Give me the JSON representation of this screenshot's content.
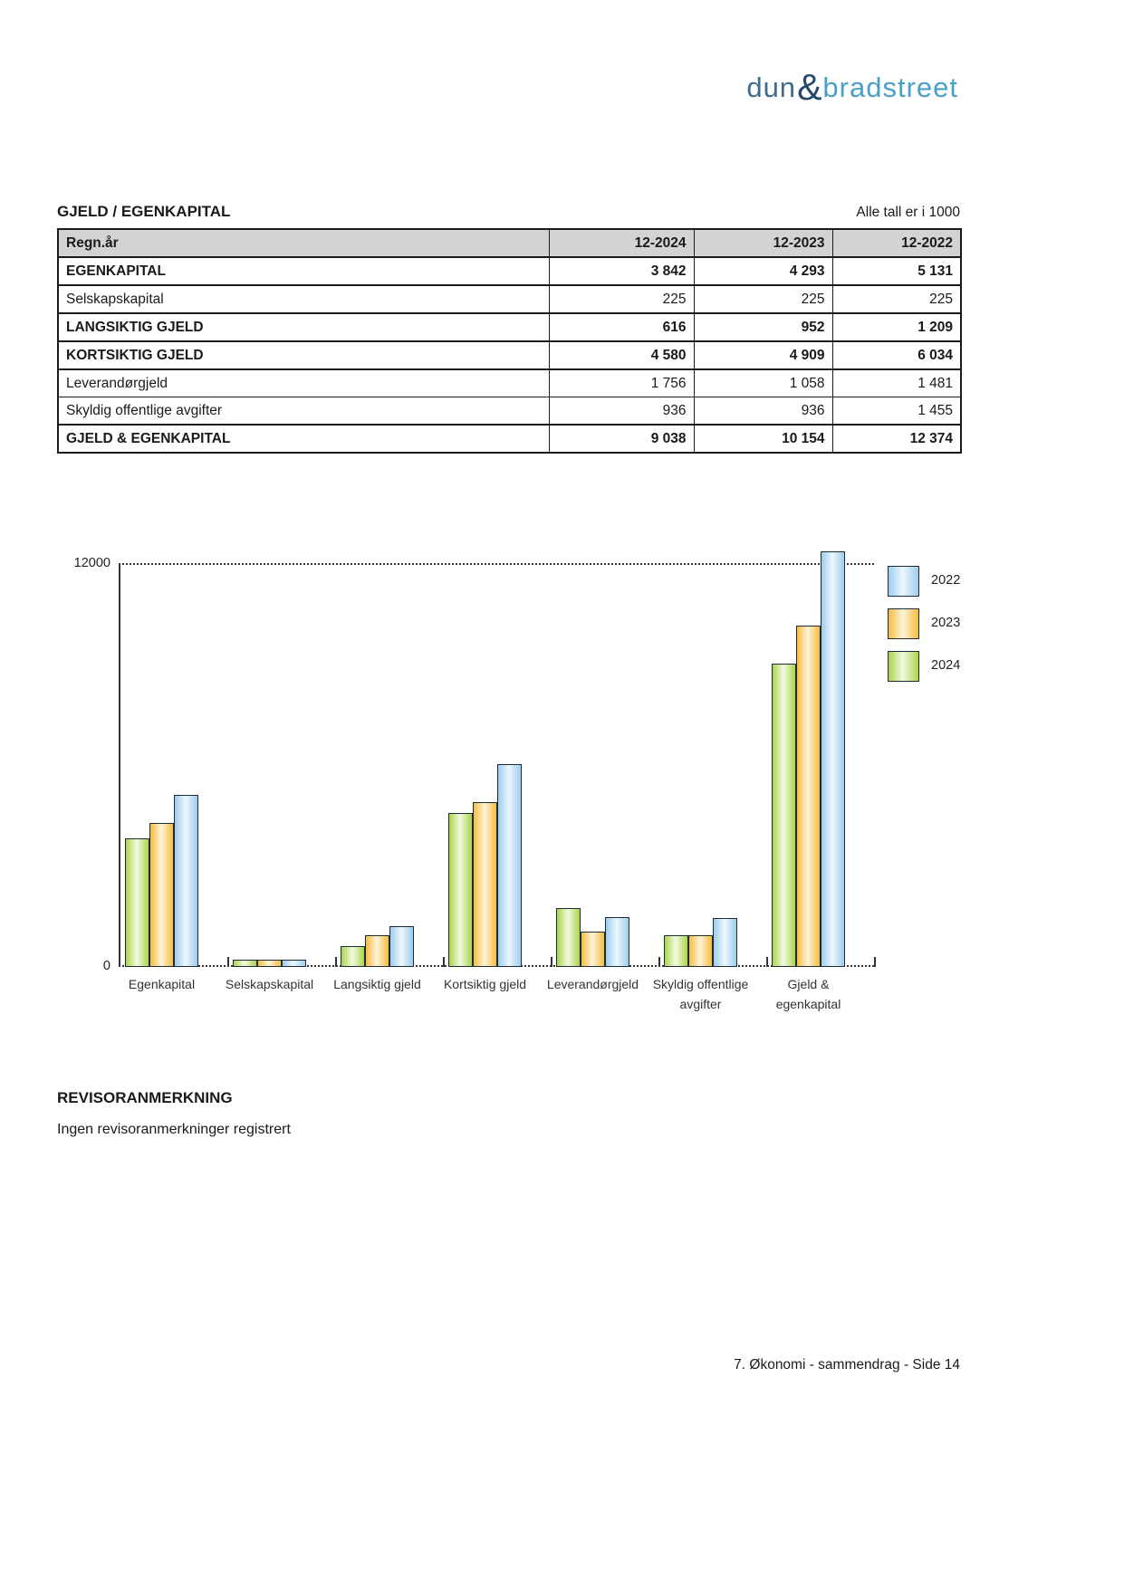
{
  "logo": {
    "part1": "dun",
    "amp": "&",
    "part2": "bradstreet"
  },
  "section": {
    "title": "GJELD / EGENKAPITAL",
    "note": "Alle tall er i 1000"
  },
  "table": {
    "headers": [
      "Regn.år",
      "12-2024",
      "12-2023",
      "12-2022"
    ],
    "rows": [
      {
        "label": "EGENKAPITAL",
        "bold": true,
        "values": [
          "3 842",
          "4 293",
          "5 131"
        ]
      },
      {
        "label": "Selskapskapital",
        "bold": false,
        "values": [
          "225",
          "225",
          "225"
        ]
      },
      {
        "label": "LANGSIKTIG GJELD",
        "bold": true,
        "values": [
          "616",
          "952",
          "1 209"
        ]
      },
      {
        "label": "KORTSIKTIG GJELD",
        "bold": true,
        "values": [
          "4 580",
          "4 909",
          "6 034"
        ]
      },
      {
        "label": "Leverandørgjeld",
        "bold": false,
        "values": [
          "1 756",
          "1 058",
          "1 481"
        ]
      },
      {
        "label": "Skyldig offentlige avgifter",
        "bold": false,
        "values": [
          "936",
          "936",
          "1 455"
        ]
      },
      {
        "label": "GJELD & EGENKAPITAL",
        "bold": true,
        "values": [
          "9 038",
          "10 154",
          "12 374"
        ]
      }
    ]
  },
  "chart_data": {
    "type": "bar",
    "title": "",
    "categories": [
      "Egenkapital",
      "Selskapskapital",
      "Langsiktig gjeld",
      "Kortsiktig gjeld",
      "Leverandørgjeld",
      "Skyldig offentlige avgifter",
      "Gjeld & egenkapital"
    ],
    "category_label_lines": [
      [
        "Egenkapital"
      ],
      [
        "Selskapskapital"
      ],
      [
        "Langsiktig gjeld"
      ],
      [
        "Kortsiktig gjeld"
      ],
      [
        "Leverandørgjeld"
      ],
      [
        "Skyldig offentlige",
        "avgifter"
      ],
      [
        "Gjeld &",
        "egenkapital"
      ]
    ],
    "series": [
      {
        "name": "2024",
        "color_edge": "#abd44c",
        "color_center": "#f3fae2",
        "values": [
          3842,
          225,
          616,
          4580,
          1756,
          936,
          9038
        ]
      },
      {
        "name": "2023",
        "color_edge": "#f6bc3e",
        "color_center": "#fdf4d9",
        "values": [
          4293,
          225,
          952,
          4909,
          1058,
          936,
          10154
        ]
      },
      {
        "name": "2022",
        "color_edge": "#9dcdec",
        "color_center": "#edf7fd",
        "values": [
          5131,
          225,
          1209,
          6034,
          1481,
          1455,
          12374
        ]
      }
    ],
    "legend": [
      "2022",
      "2023",
      "2024"
    ],
    "legend_position": "right",
    "ylim": [
      0,
      12000
    ],
    "ytick_labels": [
      "0",
      "12000"
    ],
    "grid": "dotted-top-and-baseline"
  },
  "revisor": {
    "heading": "REVISORANMERKNING",
    "body": "Ingen revisoranmerkninger registrert"
  },
  "page": {
    "footer": "7. Økonomi - sammendrag - Side 14"
  }
}
